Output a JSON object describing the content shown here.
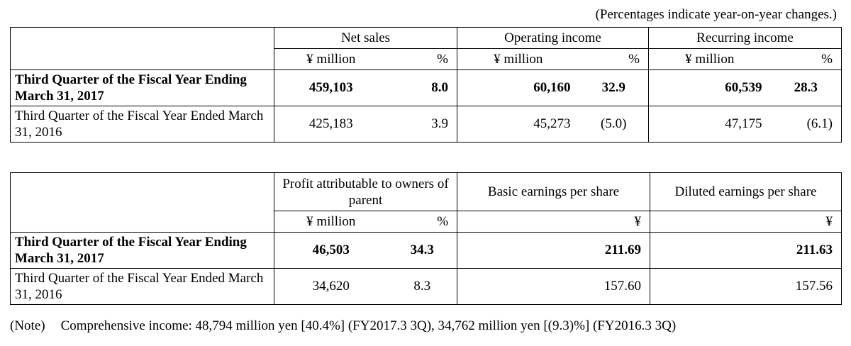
{
  "caption": "(Percentages indicate year-on-year changes.)",
  "table1": {
    "headers": {
      "net_sales": "Net sales",
      "operating_income": "Operating income",
      "recurring_income": "Recurring income"
    },
    "units": {
      "million": "¥ million",
      "pct": "%"
    },
    "rows": [
      {
        "label": "Third Quarter of the Fiscal Year Ending March 31, 2017",
        "net_sales": "459,103",
        "net_sales_pct": "8.0",
        "operating_income": "60,160",
        "operating_income_pct": "32.9",
        "recurring_income": "60,539",
        "recurring_income_pct": "28.3"
      },
      {
        "label": "Third Quarter of the Fiscal Year Ended March 31, 2016",
        "net_sales": "425,183",
        "net_sales_pct": "3.9",
        "operating_income": "45,273",
        "operating_income_pct": "(5.0)",
        "recurring_income": "47,175",
        "recurring_income_pct": "(6.1)"
      }
    ]
  },
  "table2": {
    "headers": {
      "profit": "Profit attributable to owners of parent",
      "basic_eps": "Basic earnings per share",
      "diluted_eps": "Diluted earnings per share"
    },
    "units": {
      "million": "¥ million",
      "pct": "%",
      "yen": "¥"
    },
    "rows": [
      {
        "label": "Third Quarter of the Fiscal Year Ending March 31, 2017",
        "profit": "46,503",
        "profit_pct": "34.3",
        "basic_eps": "211.69",
        "diluted_eps": "211.63"
      },
      {
        "label": "Third Quarter of the Fiscal Year Ended March 31, 2016",
        "profit": "34,620",
        "profit_pct": "8.3",
        "basic_eps": "157.60",
        "diluted_eps": "157.56"
      }
    ]
  },
  "note": {
    "label": "(Note)",
    "text": "Comprehensive income: 48,794 million yen [40.4%] (FY2017.3 3Q), 34,762 million yen [(9.3)%] (FY2016.3 3Q)"
  }
}
